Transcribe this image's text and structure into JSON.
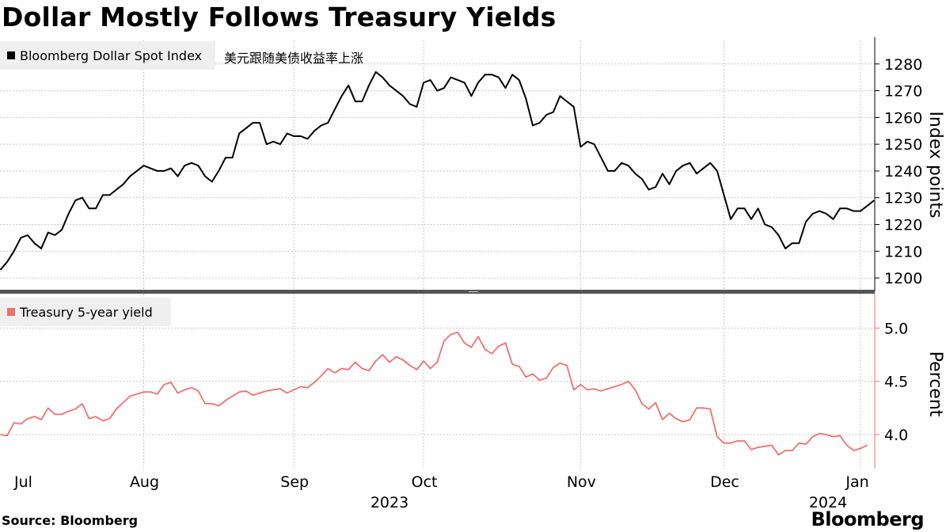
{
  "title": "Dollar Mostly Follows Treasury Yields",
  "source": "Source: Bloomberg",
  "brand": "Bloomberg",
  "colors": {
    "dollar": "#000000",
    "yield": "#f07070",
    "grid": "#c8c8c8",
    "divider": "#555555"
  },
  "chart_data": [
    {
      "type": "line",
      "legend_label": "Bloomberg Dollar Spot Index",
      "annotation": "美元跟随美债收益率上涨",
      "ylabel": "Index points",
      "ylim": [
        1195,
        1290
      ],
      "yticks": [
        1200,
        1210,
        1220,
        1230,
        1240,
        1250,
        1260,
        1270,
        1280
      ],
      "series": [
        {
          "name": "Bloomberg Dollar Spot Index",
          "values": [
            1203,
            1206,
            1210,
            1215,
            1216,
            1213,
            1211,
            1217,
            1216,
            1218,
            1224,
            1229,
            1230,
            1226,
            1226,
            1231,
            1231,
            1233,
            1235,
            1238,
            1240,
            1242,
            1241,
            1240,
            1240,
            1241,
            1238,
            1242,
            1243,
            1242,
            1238,
            1236,
            1240,
            1245,
            1245,
            1254,
            1256,
            1258,
            1258,
            1250,
            1251,
            1250,
            1254,
            1253,
            1253,
            1252,
            1255,
            1257,
            1258,
            1263,
            1268,
            1272,
            1266,
            1266,
            1272,
            1277,
            1275,
            1272,
            1270,
            1268,
            1265,
            1264,
            1273,
            1274,
            1270,
            1271,
            1275,
            1274,
            1273,
            1268,
            1273,
            1276,
            1276,
            1275,
            1271,
            1276,
            1274,
            1267,
            1257,
            1258,
            1261,
            1262,
            1268,
            1266,
            1264,
            1249,
            1251,
            1250,
            1245,
            1240,
            1240,
            1243,
            1242,
            1239,
            1237,
            1233,
            1234,
            1239,
            1235,
            1240,
            1242,
            1243,
            1239,
            1241,
            1243,
            1240,
            1231,
            1222,
            1226,
            1226,
            1222,
            1226,
            1220,
            1219,
            1216,
            1211,
            1213,
            1213,
            1221,
            1224,
            1225,
            1224,
            1222,
            1226,
            1226,
            1225,
            1225,
            1227,
            1229
          ]
        }
      ]
    },
    {
      "type": "line",
      "legend_label": "Treasury 5-year yield",
      "ylabel": "Percent",
      "ylim": [
        3.68,
        5.33
      ],
      "yticks": [
        4.0,
        4.5,
        5.0
      ],
      "ytick_labels": [
        "4.0",
        "4.5",
        "5.0"
      ],
      "series": [
        {
          "name": "Treasury 5-year yield",
          "values": [
            4.0,
            3.99,
            4.11,
            4.1,
            4.15,
            4.17,
            4.14,
            4.25,
            4.19,
            4.19,
            4.22,
            4.24,
            4.29,
            4.15,
            4.17,
            4.13,
            4.15,
            4.24,
            4.3,
            4.36,
            4.38,
            4.4,
            4.4,
            4.38,
            4.47,
            4.49,
            4.39,
            4.42,
            4.44,
            4.41,
            4.29,
            4.29,
            4.27,
            4.32,
            4.36,
            4.4,
            4.41,
            4.37,
            4.39,
            4.41,
            4.42,
            4.43,
            4.39,
            4.42,
            4.45,
            4.44,
            4.49,
            4.55,
            4.62,
            4.58,
            4.62,
            4.61,
            4.68,
            4.62,
            4.6,
            4.69,
            4.75,
            4.68,
            4.73,
            4.7,
            4.65,
            4.61,
            4.69,
            4.62,
            4.68,
            4.88,
            4.94,
            4.96,
            4.86,
            4.82,
            4.92,
            4.8,
            4.76,
            4.83,
            4.86,
            4.66,
            4.64,
            4.54,
            4.57,
            4.51,
            4.53,
            4.63,
            4.67,
            4.65,
            4.42,
            4.47,
            4.42,
            4.43,
            4.41,
            4.43,
            4.45,
            4.47,
            4.5,
            4.42,
            4.29,
            4.24,
            4.3,
            4.14,
            4.2,
            4.15,
            4.12,
            4.14,
            4.25,
            4.25,
            4.24,
            3.98,
            3.92,
            3.92,
            3.94,
            3.94,
            3.86,
            3.88,
            3.89,
            3.9,
            3.81,
            3.85,
            3.85,
            3.92,
            3.91,
            3.98,
            4.01,
            4.0,
            3.98,
            3.99,
            3.9,
            3.85,
            3.87,
            3.9
          ]
        }
      ]
    }
  ],
  "x_axis": {
    "month_labels": [
      "Jul",
      "Aug",
      "Sep",
      "Oct",
      "Nov",
      "Dec",
      "Jan"
    ],
    "month_starts": [
      0,
      21,
      43,
      62,
      85,
      106,
      126
    ],
    "year_labels": [
      "2023",
      "2024"
    ]
  }
}
